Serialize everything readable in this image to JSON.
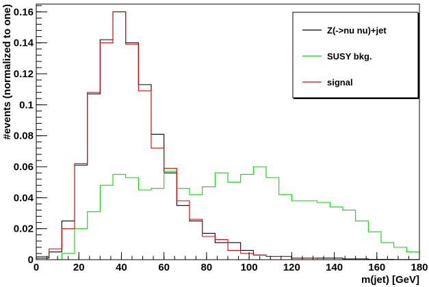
{
  "chart_data": {
    "type": "line",
    "xlabel": "m(jet) [GeV]",
    "ylabel": "#events (normalized to one)",
    "xlim": [
      0,
      180
    ],
    "ylim": [
      0,
      0.165
    ],
    "x_ticks": [
      0,
      20,
      40,
      60,
      80,
      100,
      120,
      140,
      160,
      180
    ],
    "x_tick_labels": [
      "0",
      "20",
      "40",
      "60",
      "80",
      "100",
      "120",
      "140",
      "160",
      "180"
    ],
    "y_ticks": [
      0,
      0.02,
      0.04,
      0.06,
      0.08,
      0.1,
      0.12,
      0.14,
      0.16
    ],
    "y_tick_labels": [
      "0",
      "0.02",
      "0.04",
      "0.06",
      "0.08",
      "0.1",
      "0.12",
      "0.14",
      "0.16"
    ],
    "bin_edges": [
      0,
      6,
      12,
      18,
      24,
      30,
      36,
      42,
      48,
      54,
      60,
      66,
      72,
      78,
      84,
      90,
      96,
      102,
      108,
      114,
      120,
      126,
      132,
      138,
      144,
      150,
      156,
      162,
      168,
      174,
      180
    ],
    "grid": false,
    "legend_position": "top-right",
    "series": [
      {
        "name": "Z(->nu nu)+jet",
        "color": "#000000",
        "values": [
          0.001,
          0.005,
          0.025,
          0.061,
          0.107,
          0.142,
          0.16,
          0.14,
          0.113,
          0.081,
          0.056,
          0.035,
          0.025,
          0.017,
          0.011,
          0.011,
          0.006,
          0.003,
          0.002,
          0.002,
          0.001,
          0.001,
          0.001,
          0.001,
          0.0005,
          0.0005,
          0.0002,
          0.0002,
          0.0001,
          0.0001
        ]
      },
      {
        "name": "SUSY bkg.",
        "color": "#00dd00",
        "values": [
          0.0,
          0.0,
          0.004,
          0.02,
          0.031,
          0.048,
          0.055,
          0.053,
          0.045,
          0.046,
          0.057,
          0.046,
          0.042,
          0.047,
          0.056,
          0.05,
          0.055,
          0.06,
          0.053,
          0.042,
          0.038,
          0.038,
          0.037,
          0.034,
          0.032,
          0.025,
          0.018,
          0.011,
          0.008,
          0.005
        ]
      },
      {
        "name": "signal",
        "color": "#ee0000",
        "values": [
          0.002,
          0.007,
          0.02,
          0.062,
          0.108,
          0.14,
          0.16,
          0.139,
          0.109,
          0.072,
          0.059,
          0.038,
          0.026,
          0.015,
          0.013,
          0.006,
          0.004,
          0.003,
          0.002,
          0.002,
          0.001,
          0.001,
          0.0,
          0.0,
          0.0,
          0.0,
          0.0,
          0.0,
          0.0,
          0.0
        ]
      }
    ]
  }
}
